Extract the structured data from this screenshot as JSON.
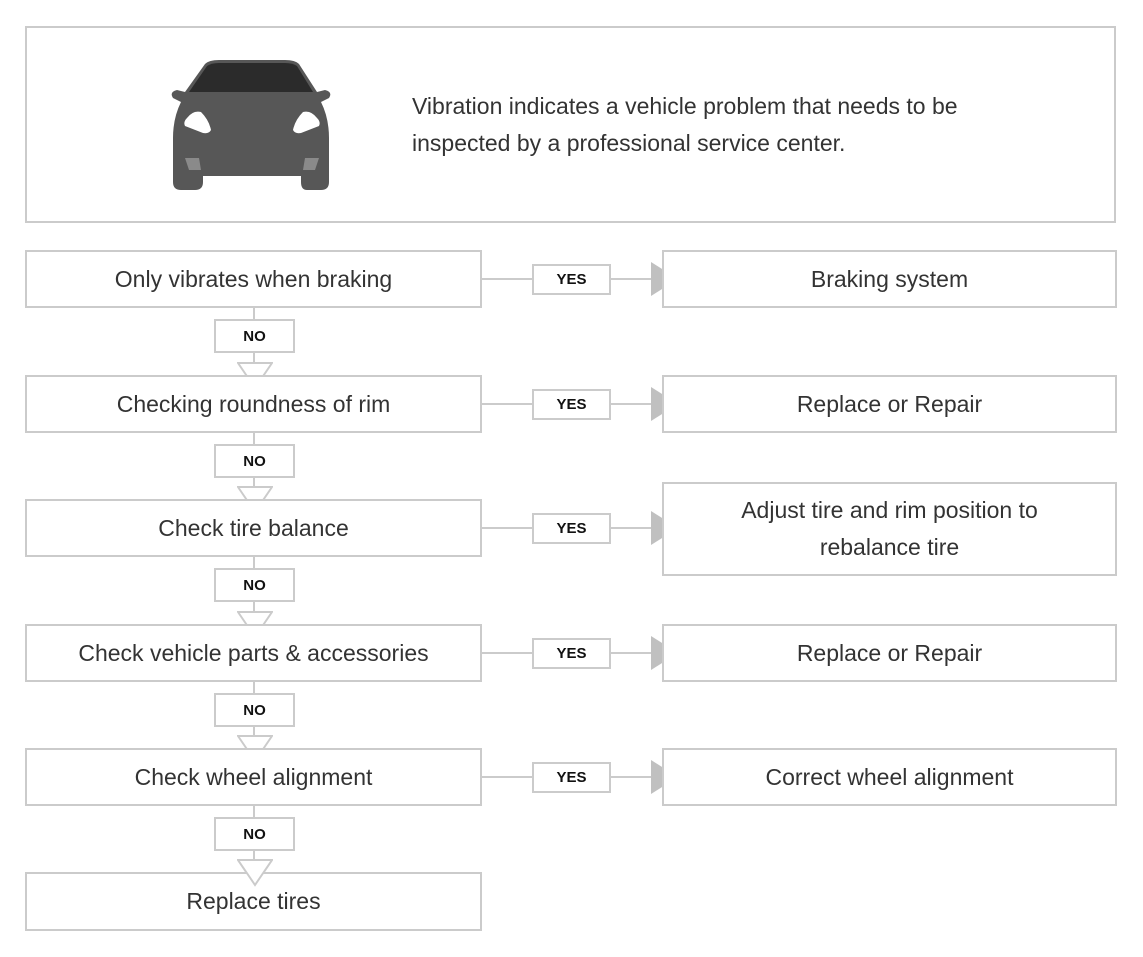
{
  "header": {
    "icon": "car-front-icon",
    "text": "Vibration indicates a vehicle problem that needs to be inspected by a professional service center."
  },
  "colors": {
    "border": "#cbcbcb",
    "arrow": "#c0c0c0",
    "car_body": "#575757",
    "windshield": "#2b2b2b"
  },
  "yes_label": "YES",
  "no_label": "NO",
  "steps": [
    {
      "check": "Only vibrates when braking",
      "result": "Braking system"
    },
    {
      "check": "Checking roundness of rim",
      "result": "Replace or Repair"
    },
    {
      "check": "Check tire balance",
      "result": "Adjust tire and rim position to rebalance tire"
    },
    {
      "check": "Check vehicle parts & accessories",
      "result": "Replace or Repair"
    },
    {
      "check": "Check wheel alignment",
      "result": "Correct wheel alignment"
    }
  ],
  "final": "Replace tires"
}
